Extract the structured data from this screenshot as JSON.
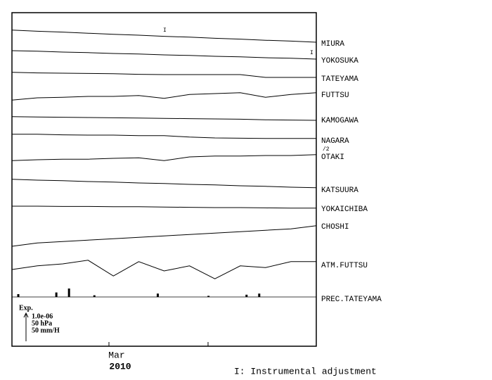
{
  "chart_data": {
    "type": "multitrace",
    "x_label_month": "Mar",
    "x_label_year": "2010",
    "footnote": "I: Instrumental adjustment",
    "scale": {
      "title": "Exp.",
      "strain": "1.0e-06",
      "pressure": "50 hPa",
      "precipitation": "50 mm/H"
    },
    "adjustment_mark": "I",
    "color": "#000000",
    "series": [
      {
        "name": "MIURA",
        "values": [
          0.48,
          0.44,
          0.41,
          0.37,
          0.33,
          0.3,
          0.26,
          0.23,
          0.19,
          0.16,
          0.12,
          0.09,
          0.05
        ]
      },
      {
        "name": "YOKOSUKA",
        "values": [
          0.35,
          0.33,
          0.3,
          0.28,
          0.25,
          0.23,
          0.2,
          0.18,
          0.15,
          0.13,
          0.1,
          0.08,
          0.05
        ]
      },
      {
        "name": "TATEYAMA",
        "values": [
          0.23,
          0.21,
          0.2,
          0.19,
          0.18,
          0.16,
          0.15,
          0.15,
          0.15,
          0.15,
          0.05,
          0.05,
          0.05
        ]
      },
      {
        "name": "FUTTSU",
        "values": [
          -0.18,
          -0.1,
          -0.08,
          -0.05,
          -0.05,
          -0.02,
          -0.12,
          0.02,
          0.05,
          0.08,
          -0.08,
          0.02,
          0.08
        ]
      },
      {
        "name": "KAMOGAWA",
        "values": [
          0.13,
          0.12,
          0.11,
          0.1,
          0.09,
          0.08,
          0.07,
          0.06,
          0.05,
          0.04,
          0.02,
          0.01,
          0.0
        ]
      },
      {
        "name": "NAGARA",
        "values": [
          0.23,
          0.23,
          0.21,
          0.2,
          0.2,
          0.18,
          0.18,
          0.13,
          0.1,
          0.09,
          0.08,
          0.08,
          0.08
        ]
      },
      {
        "name": "OTAKI",
        "scale_note": "/2",
        "values": [
          -0.13,
          -0.1,
          -0.08,
          -0.08,
          -0.05,
          -0.03,
          -0.13,
          0,
          0.03,
          0.03,
          0.05,
          0.05,
          0.08
        ]
      },
      {
        "name": "KATSUURA",
        "values": [
          0.38,
          0.35,
          0.33,
          0.3,
          0.28,
          0.25,
          0.23,
          0.2,
          0.18,
          0.15,
          0.13,
          0.1,
          0.08
        ]
      },
      {
        "name": "YOKAICHIBA",
        "values": [
          0.1,
          0.1,
          0.09,
          0.09,
          0.08,
          0.08,
          0.07,
          0.06,
          0.05,
          0.05,
          0.04,
          0.03,
          0.03
        ]
      },
      {
        "name": "CHOSHI",
        "values": [
          -0.7,
          -0.58,
          -0.53,
          -0.48,
          -0.43,
          -0.38,
          -0.33,
          -0.28,
          -0.23,
          -0.18,
          -0.13,
          -0.08,
          0.03
        ]
      },
      {
        "name": "ATM.FUTTSU",
        "values": [
          -0.15,
          -0.02,
          0.05,
          0.18,
          -0.38,
          0.13,
          -0.2,
          -0.02,
          -0.48,
          -0.02,
          -0.08,
          0.13,
          0.13
        ]
      }
    ],
    "precipitation": {
      "name": "PREC.TATEYAMA",
      "values": [
        5,
        0,
        0,
        8,
        15,
        0,
        3,
        0,
        0,
        0,
        0,
        6,
        0,
        0,
        0,
        2,
        0,
        0,
        4,
        6,
        0,
        0,
        0,
        0
      ]
    }
  }
}
